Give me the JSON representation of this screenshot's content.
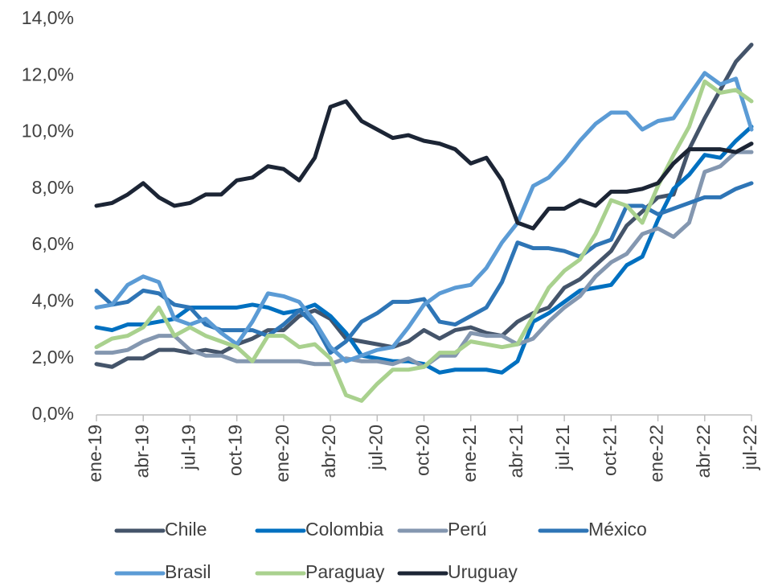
{
  "chart_data": {
    "type": "line",
    "categories": [
      "ene-19",
      null,
      null,
      "abr-19",
      null,
      null,
      "jul-19",
      null,
      null,
      "oct-19",
      null,
      null,
      "ene-20",
      null,
      null,
      "abr-20",
      null,
      null,
      "jul-20",
      null,
      null,
      "oct-20",
      null,
      null,
      "ene-21",
      null,
      null,
      "abr-21",
      null,
      null,
      "jul-21",
      null,
      null,
      "oct-21",
      null,
      null,
      "ene-22",
      null,
      null,
      "abr-22",
      null,
      null,
      "jul-22"
    ],
    "series": [
      {
        "name": "Chile",
        "color": "#44546a",
        "values": [
          1.8,
          1.7,
          2.0,
          2.0,
          2.3,
          2.3,
          2.2,
          2.3,
          2.2,
          2.5,
          2.7,
          3.0,
          3.0,
          3.5,
          3.7,
          3.4,
          2.7,
          2.6,
          2.5,
          2.4,
          2.6,
          3.0,
          2.7,
          3.0,
          3.1,
          2.9,
          2.8,
          3.3,
          3.6,
          3.8,
          4.5,
          4.8,
          5.3,
          5.8,
          6.7,
          7.2,
          7.7,
          7.8,
          9.4,
          10.5,
          11.5,
          12.5,
          13.1
        ]
      },
      {
        "name": "Colombia",
        "color": "#0070c0",
        "values": [
          3.1,
          3.0,
          3.2,
          3.2,
          3.3,
          3.4,
          3.8,
          3.8,
          3.8,
          3.8,
          3.9,
          3.8,
          3.6,
          3.7,
          3.9,
          3.5,
          2.9,
          2.1,
          2.0,
          1.9,
          1.9,
          1.8,
          1.5,
          1.6,
          1.6,
          1.6,
          1.5,
          1.9,
          3.3,
          3.6,
          4.0,
          4.4,
          4.5,
          4.6,
          5.3,
          5.6,
          6.9,
          8.0,
          8.5,
          9.2,
          9.1,
          9.7,
          10.2
        ]
      },
      {
        "name": "Perú",
        "color": "#8497b0",
        "values": [
          2.2,
          2.2,
          2.3,
          2.6,
          2.8,
          2.8,
          2.3,
          2.1,
          2.1,
          1.9,
          1.9,
          1.9,
          1.9,
          1.9,
          1.8,
          1.8,
          2.0,
          1.9,
          1.9,
          1.8,
          2.0,
          1.7,
          2.1,
          2.1,
          2.9,
          2.8,
          2.8,
          2.5,
          2.7,
          3.3,
          3.8,
          4.2,
          4.9,
          5.4,
          5.7,
          6.4,
          6.6,
          6.3,
          6.8,
          8.6,
          8.8,
          9.3,
          9.3
        ]
      },
      {
        "name": "México",
        "color": "#2e75b6",
        "values": [
          4.4,
          3.9,
          4.0,
          4.4,
          4.3,
          3.9,
          3.8,
          3.2,
          3.0,
          3.0,
          3.0,
          2.8,
          3.2,
          3.7,
          3.2,
          2.2,
          2.6,
          3.3,
          3.6,
          4.0,
          4.0,
          4.1,
          3.3,
          3.2,
          3.5,
          3.8,
          4.7,
          6.1,
          5.9,
          5.9,
          5.8,
          5.6,
          6.0,
          6.2,
          7.4,
          7.4,
          7.1,
          7.3,
          7.5,
          7.7,
          7.7,
          8.0,
          8.2
        ]
      },
      {
        "name": "Brasil",
        "color": "#5b9bd5",
        "values": [
          3.8,
          3.9,
          4.6,
          4.9,
          4.7,
          3.4,
          3.2,
          3.4,
          2.9,
          2.5,
          3.3,
          4.3,
          4.2,
          4.0,
          3.3,
          2.4,
          1.9,
          2.1,
          2.3,
          2.4,
          3.1,
          3.9,
          4.3,
          4.5,
          4.6,
          5.2,
          6.1,
          6.8,
          8.1,
          8.4,
          9.0,
          9.7,
          10.3,
          10.7,
          10.7,
          10.1,
          10.4,
          10.5,
          11.3,
          12.1,
          11.7,
          11.9,
          10.1
        ]
      },
      {
        "name": "Paraguay",
        "color": "#a9d18e",
        "values": [
          2.4,
          2.7,
          2.8,
          3.1,
          3.8,
          2.8,
          3.1,
          2.8,
          2.6,
          2.4,
          1.9,
          2.8,
          2.8,
          2.4,
          2.5,
          2.0,
          0.7,
          0.5,
          1.1,
          1.6,
          1.6,
          1.7,
          2.2,
          2.2,
          2.6,
          2.5,
          2.4,
          2.5,
          3.5,
          4.5,
          5.1,
          5.5,
          6.4,
          7.6,
          7.4,
          6.8,
          8.1,
          9.2,
          10.2,
          11.8,
          11.4,
          11.5,
          11.1
        ]
      },
      {
        "name": "Uruguay",
        "color": "#1c2535",
        "values": [
          7.4,
          7.5,
          7.8,
          8.2,
          7.7,
          7.4,
          7.5,
          7.8,
          7.8,
          8.3,
          8.4,
          8.8,
          8.7,
          8.3,
          9.1,
          10.9,
          11.1,
          10.4,
          10.1,
          9.8,
          9.9,
          9.7,
          9.6,
          9.4,
          8.9,
          9.1,
          8.3,
          6.8,
          6.6,
          7.3,
          7.3,
          7.6,
          7.4,
          7.9,
          7.9,
          8.0,
          8.2,
          8.9,
          9.4,
          9.4,
          9.4,
          9.3,
          9.6
        ]
      }
    ],
    "ylim": [
      0,
      14
    ],
    "yticks": [
      {
        "value": 0,
        "label": "0,0%"
      },
      {
        "value": 2,
        "label": "2,0%"
      },
      {
        "value": 4,
        "label": "4,0%"
      },
      {
        "value": 6,
        "label": "6,0%"
      },
      {
        "value": 8,
        "label": "8,0%"
      },
      {
        "value": 10,
        "label": "10,0%"
      },
      {
        "value": 12,
        "label": "12,0%"
      },
      {
        "value": 14,
        "label": "14,0%"
      }
    ],
    "grid": false,
    "legend": "bottom"
  }
}
